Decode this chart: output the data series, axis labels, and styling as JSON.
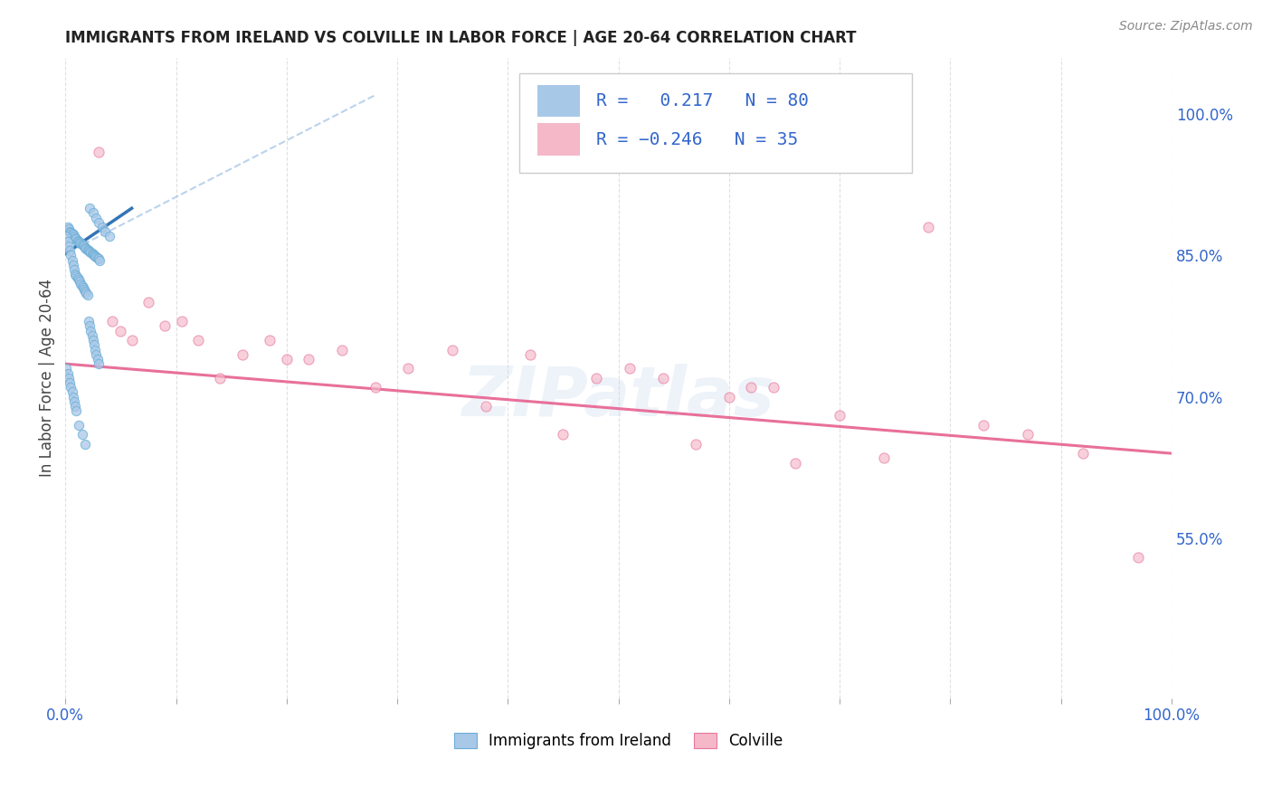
{
  "title": "IMMIGRANTS FROM IRELAND VS COLVILLE IN LABOR FORCE | AGE 20-64 CORRELATION CHART",
  "source": "Source: ZipAtlas.com",
  "ylabel": "In Labor Force | Age 20-64",
  "xlim": [
    0.0,
    1.0
  ],
  "ylim": [
    0.38,
    1.06
  ],
  "xticks": [
    0.0,
    0.1,
    0.2,
    0.3,
    0.4,
    0.5,
    0.6,
    0.7,
    0.8,
    0.9,
    1.0
  ],
  "xticklabels": [
    "0.0%",
    "",
    "",
    "",
    "",
    "",
    "",
    "",
    "",
    "",
    "100.0%"
  ],
  "yticks_right": [
    0.55,
    0.7,
    0.85,
    1.0
  ],
  "ytick_right_labels": [
    "55.0%",
    "70.0%",
    "85.0%",
    "100.0%"
  ],
  "blue_color": "#a8c8e8",
  "blue_edge_color": "#6baed6",
  "pink_color": "#f4b8c8",
  "pink_edge_color": "#e878a0",
  "blue_line_color": "#3375b5",
  "pink_line_color": "#e8709a",
  "dashed_line_color": "#aac8e8",
  "watermark": "ZIPatlas",
  "bottom_legend_blue": "Immigrants from Ireland",
  "bottom_legend_pink": "Colville",
  "blue_points_x": [
    0.002,
    0.003,
    0.004,
    0.005,
    0.006,
    0.007,
    0.008,
    0.009,
    0.01,
    0.011,
    0.012,
    0.013,
    0.014,
    0.015,
    0.016,
    0.017,
    0.018,
    0.019,
    0.02,
    0.021,
    0.022,
    0.023,
    0.024,
    0.025,
    0.026,
    0.027,
    0.028,
    0.029,
    0.03,
    0.031,
    0.001,
    0.002,
    0.003,
    0.004,
    0.005,
    0.006,
    0.007,
    0.008,
    0.009,
    0.01,
    0.011,
    0.012,
    0.013,
    0.014,
    0.015,
    0.016,
    0.017,
    0.018,
    0.019,
    0.02,
    0.021,
    0.022,
    0.023,
    0.024,
    0.025,
    0.026,
    0.027,
    0.028,
    0.029,
    0.03,
    0.001,
    0.002,
    0.003,
    0.004,
    0.005,
    0.006,
    0.007,
    0.008,
    0.009,
    0.01,
    0.012,
    0.015,
    0.018,
    0.022,
    0.025,
    0.028,
    0.03,
    0.033,
    0.036,
    0.04
  ],
  "blue_points_y": [
    0.88,
    0.878,
    0.875,
    0.874,
    0.873,
    0.872,
    0.87,
    0.869,
    0.868,
    0.866,
    0.865,
    0.864,
    0.863,
    0.862,
    0.861,
    0.86,
    0.858,
    0.857,
    0.856,
    0.855,
    0.854,
    0.853,
    0.852,
    0.851,
    0.85,
    0.849,
    0.848,
    0.847,
    0.846,
    0.845,
    0.87,
    0.865,
    0.86,
    0.855,
    0.85,
    0.845,
    0.84,
    0.835,
    0.83,
    0.828,
    0.826,
    0.824,
    0.822,
    0.82,
    0.818,
    0.816,
    0.814,
    0.812,
    0.81,
    0.808,
    0.78,
    0.775,
    0.77,
    0.765,
    0.76,
    0.755,
    0.75,
    0.745,
    0.74,
    0.735,
    0.73,
    0.725,
    0.72,
    0.715,
    0.71,
    0.705,
    0.7,
    0.695,
    0.69,
    0.685,
    0.67,
    0.66,
    0.65,
    0.9,
    0.895,
    0.89,
    0.885,
    0.88,
    0.875,
    0.87
  ],
  "pink_points_x": [
    0.03,
    0.042,
    0.05,
    0.06,
    0.075,
    0.09,
    0.105,
    0.12,
    0.14,
    0.16,
    0.185,
    0.2,
    0.22,
    0.25,
    0.28,
    0.31,
    0.35,
    0.38,
    0.42,
    0.45,
    0.48,
    0.51,
    0.54,
    0.57,
    0.6,
    0.62,
    0.64,
    0.66,
    0.7,
    0.74,
    0.78,
    0.83,
    0.87,
    0.92,
    0.97
  ],
  "pink_points_y": [
    0.96,
    0.78,
    0.77,
    0.76,
    0.8,
    0.775,
    0.78,
    0.76,
    0.72,
    0.745,
    0.76,
    0.74,
    0.74,
    0.75,
    0.71,
    0.73,
    0.75,
    0.69,
    0.745,
    0.66,
    0.72,
    0.73,
    0.72,
    0.65,
    0.7,
    0.71,
    0.71,
    0.63,
    0.68,
    0.635,
    0.88,
    0.67,
    0.66,
    0.64,
    0.53
  ],
  "blue_line_x": [
    0.0,
    0.06
  ],
  "blue_line_y": [
    0.852,
    0.9
  ],
  "pink_line_x": [
    0.0,
    1.0
  ],
  "pink_line_y": [
    0.735,
    0.64
  ],
  "dashed_line_x": [
    0.0,
    0.28
  ],
  "dashed_line_y": [
    0.852,
    1.02
  ]
}
